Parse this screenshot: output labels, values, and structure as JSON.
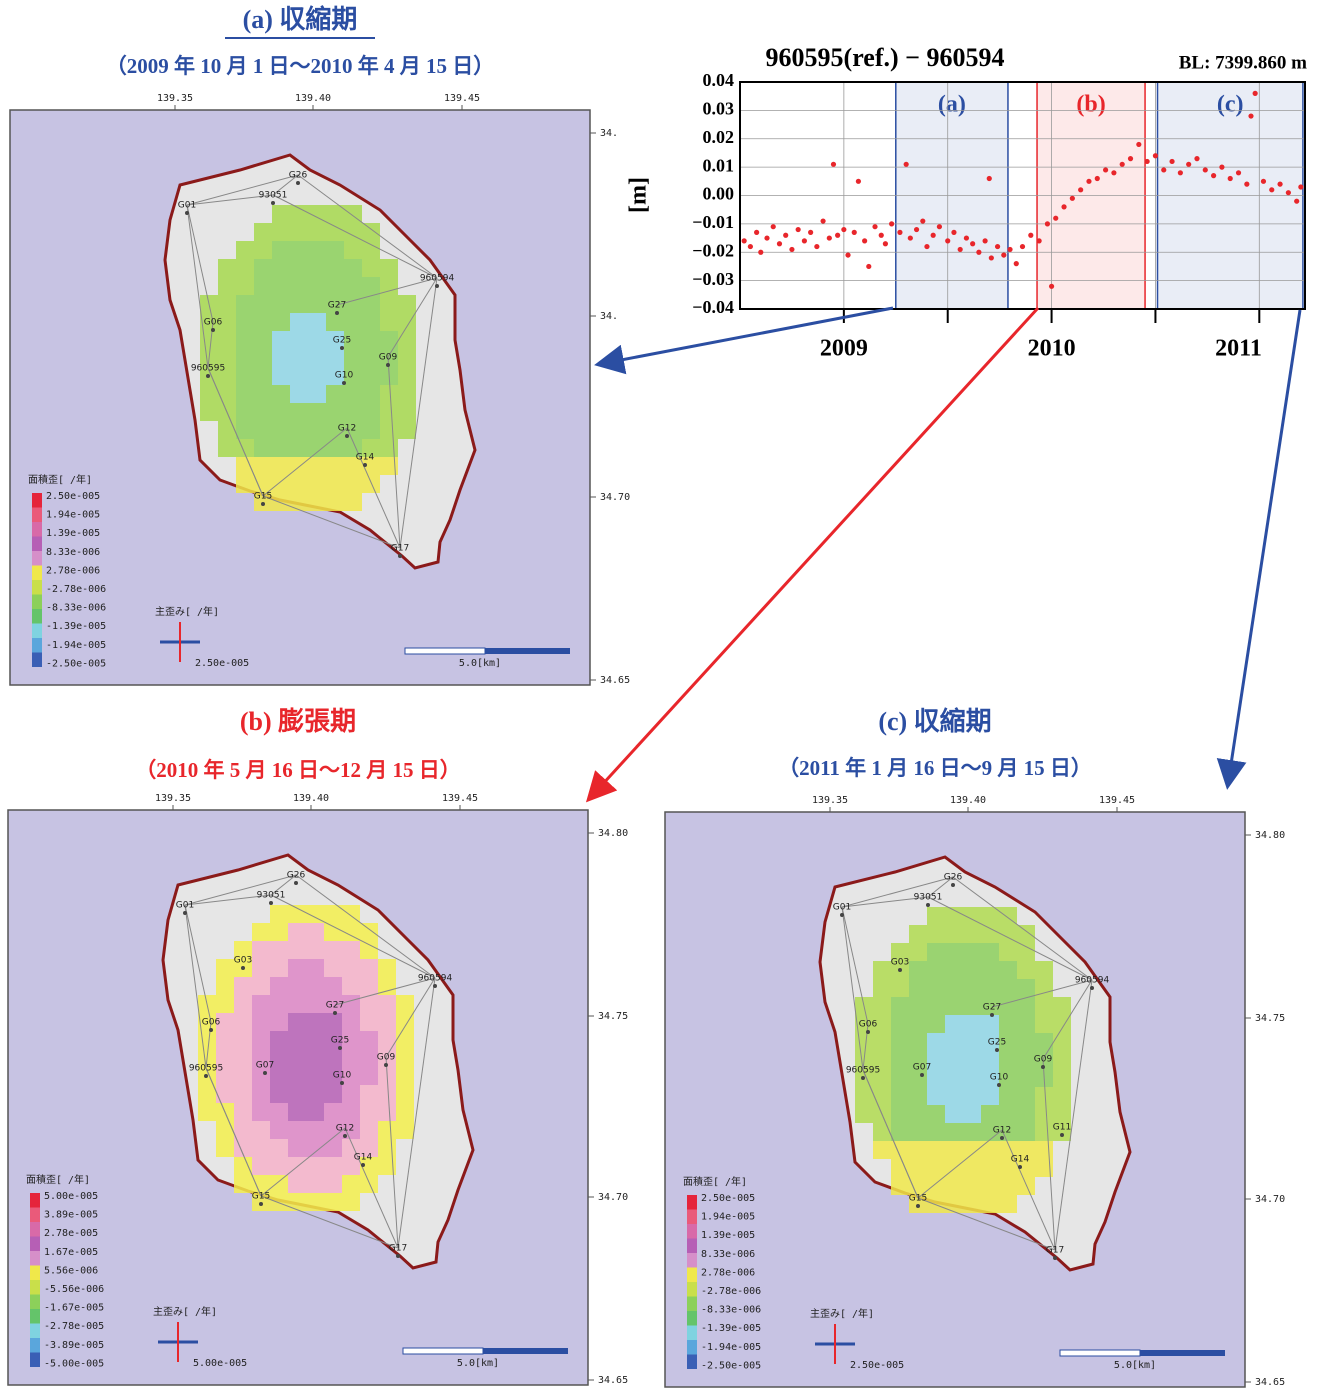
{
  "timeseries": {
    "type": "scatter",
    "title": "960595(ref.) − 960594",
    "baseline": "BL: 7399.860 m",
    "ylabel": "[m]",
    "color": "#e8262b",
    "xlim": [
      2009,
      2011.72
    ],
    "ylim": [
      -0.04,
      0.04
    ],
    "yticks": [
      {
        "value": 0.04,
        "label": "0.04"
      },
      {
        "value": 0.03,
        "label": "0.03"
      },
      {
        "value": 0.02,
        "label": "0.02"
      },
      {
        "value": 0.01,
        "label": "0.01"
      },
      {
        "value": 0,
        "label": "0.00"
      },
      {
        "value": -0.01,
        "label": "−0.01"
      },
      {
        "value": -0.02,
        "label": "−0.02"
      },
      {
        "value": -0.03,
        "label": "−0.03"
      },
      {
        "value": -0.04,
        "label": "−0.04"
      }
    ],
    "xticks": [
      {
        "value": 2009.5,
        "label": "2009"
      },
      {
        "value": 2010.5,
        "label": "2010"
      },
      {
        "value": 2011.4,
        "label": "2011"
      }
    ],
    "xticks_minor": [
      2009.5,
      2010,
      2010.5,
      2011,
      2011.5
    ],
    "periods": [
      {
        "label": "(a)",
        "range": [
          2009.75,
          2010.29
        ],
        "color": "#2b4ea2"
      },
      {
        "label": "(b)",
        "range": [
          2010.43,
          2010.95
        ],
        "color": "#e8262b"
      },
      {
        "label": "(c)",
        "range": [
          2011.01,
          2011.71
        ],
        "color": "#2b4ea2"
      }
    ],
    "x": [
      2009.02,
      2009.05,
      2009.08,
      2009.1,
      2009.13,
      2009.16,
      2009.19,
      2009.22,
      2009.25,
      2009.28,
      2009.31,
      2009.34,
      2009.37,
      2009.4,
      2009.43,
      2009.45,
      2009.47,
      2009.5,
      2009.52,
      2009.55,
      2009.57,
      2009.6,
      2009.62,
      2009.65,
      2009.68,
      2009.7,
      2009.73,
      2009.77,
      2009.8,
      2009.82,
      2009.85,
      2009.88,
      2009.9,
      2009.93,
      2009.96,
      2010.0,
      2010.03,
      2010.06,
      2010.09,
      2010.12,
      2010.15,
      2010.18,
      2010.21,
      2010.24,
      2010.27,
      2010.3,
      2010.33,
      2010.36,
      2010.4,
      2010.44,
      2010.48,
      2010.52,
      2010.56,
      2010.6,
      2010.64,
      2010.68,
      2010.72,
      2010.76,
      2010.8,
      2010.84,
      2010.88,
      2010.92,
      2010.96,
      2011.0,
      2011.04,
      2011.08,
      2011.12,
      2011.16,
      2011.2,
      2011.24,
      2011.28,
      2011.32,
      2011.36,
      2011.4,
      2011.44,
      2011.48,
      2011.52,
      2011.56,
      2011.6,
      2011.64,
      2011.68,
      2011.7,
      2010.5,
      2010.2,
      2011.46
    ],
    "y": [
      -0.016,
      -0.018,
      -0.013,
      -0.02,
      -0.015,
      -0.011,
      -0.017,
      -0.014,
      -0.019,
      -0.012,
      -0.016,
      -0.013,
      -0.018,
      -0.009,
      -0.015,
      0.011,
      -0.014,
      -0.012,
      -0.021,
      -0.013,
      0.005,
      -0.016,
      -0.025,
      -0.011,
      -0.014,
      -0.017,
      -0.01,
      -0.013,
      0.011,
      -0.015,
      -0.012,
      -0.009,
      -0.018,
      -0.014,
      -0.011,
      -0.016,
      -0.013,
      -0.019,
      -0.015,
      -0.017,
      -0.02,
      -0.016,
      -0.022,
      -0.018,
      -0.021,
      -0.019,
      -0.024,
      -0.018,
      -0.014,
      -0.016,
      -0.01,
      -0.008,
      -0.004,
      -0.001,
      0.002,
      0.005,
      0.006,
      0.009,
      0.008,
      0.011,
      0.013,
      0.018,
      0.012,
      0.014,
      0.009,
      0.012,
      0.008,
      0.011,
      0.013,
      0.009,
      0.007,
      0.01,
      0.006,
      0.008,
      0.004,
      0.036,
      0.005,
      0.002,
      0.004,
      0.001,
      -0.002,
      0.003,
      -0.032,
      0.006,
      0.028
    ]
  },
  "panels": [
    {
      "title": "(a)  収縮期",
      "period": "（2009 年 10 月 1 日～2010 年 4 月 15 日）",
      "color": "#2b4ea2",
      "lon_ticks": [
        "139.35",
        "139.40",
        "139.45"
      ],
      "lat_ticks": [
        "34.",
        "34.",
        "34.70",
        "34.65"
      ],
      "colorbar_title": "面積歪[ /年]",
      "colorbar_labels": [
        "2.50e-005",
        "1.94e-005",
        "1.39e-005",
        "8.33e-006",
        "2.78e-006",
        "-2.78e-006",
        "-8.33e-006",
        "-1.39e-005",
        "-1.94e-005",
        "-2.50e-005"
      ],
      "strain_title": "主歪み[ /年]",
      "strain_value": "2.50e-005",
      "scale_label": "5.0[km]",
      "stations": [
        "G01",
        "93051",
        "G26",
        "960594",
        "G27",
        "G06",
        "G25",
        "G09",
        "960595",
        "G10",
        "G12",
        "G14",
        "G15",
        "G17"
      ]
    },
    {
      "title": "(b)  膨張期",
      "period": "（2010 年 5 月 16 日～12 月 15 日）",
      "color": "#e8262b",
      "lon_ticks": [
        "139.35",
        "139.40",
        "139.45"
      ],
      "lat_ticks": [
        "34.80",
        "34.75",
        "34.70",
        "34.65"
      ],
      "colorbar_title": "面積歪[ /年]",
      "colorbar_labels": [
        "5.00e-005",
        "3.89e-005",
        "2.78e-005",
        "1.67e-005",
        "5.56e-006",
        "-5.56e-006",
        "-1.67e-005",
        "-2.78e-005",
        "-3.89e-005",
        "-5.00e-005"
      ],
      "strain_title": "主歪み[ /年]",
      "strain_value": "5.00e-005",
      "scale_label": "5.0[km]",
      "stations": [
        "G01",
        "93051",
        "G26",
        "960594",
        "G27",
        "G06",
        "G25",
        "G09",
        "960595",
        "G10",
        "G12",
        "G14",
        "G15",
        "G17",
        "G03",
        "G07"
      ]
    },
    {
      "title": "(c)  収縮期",
      "period": "（2011 年 1 月 16 日～9 月 15 日）",
      "color": "#2b4ea2",
      "lon_ticks": [
        "139.35",
        "139.40",
        "139.45"
      ],
      "lat_ticks": [
        "34.80",
        "34.75",
        "34.70",
        "34.65"
      ],
      "colorbar_title": "面積歪[ /年]",
      "colorbar_labels": [
        "2.50e-005",
        "1.94e-005",
        "1.39e-005",
        "8.33e-006",
        "2.78e-006",
        "-2.78e-006",
        "-8.33e-006",
        "-1.39e-005",
        "-1.94e-005",
        "-2.50e-005"
      ],
      "strain_title": "主歪み[ /年]",
      "strain_value": "2.50e-005",
      "scale_label": "5.0[km]",
      "stations": [
        "G01",
        "93051",
        "G26",
        "960594",
        "G27",
        "G06",
        "G25",
        "G09",
        "960595",
        "G10",
        "G12",
        "G14",
        "G15",
        "G17",
        "G03",
        "G07",
        "G11"
      ]
    }
  ]
}
